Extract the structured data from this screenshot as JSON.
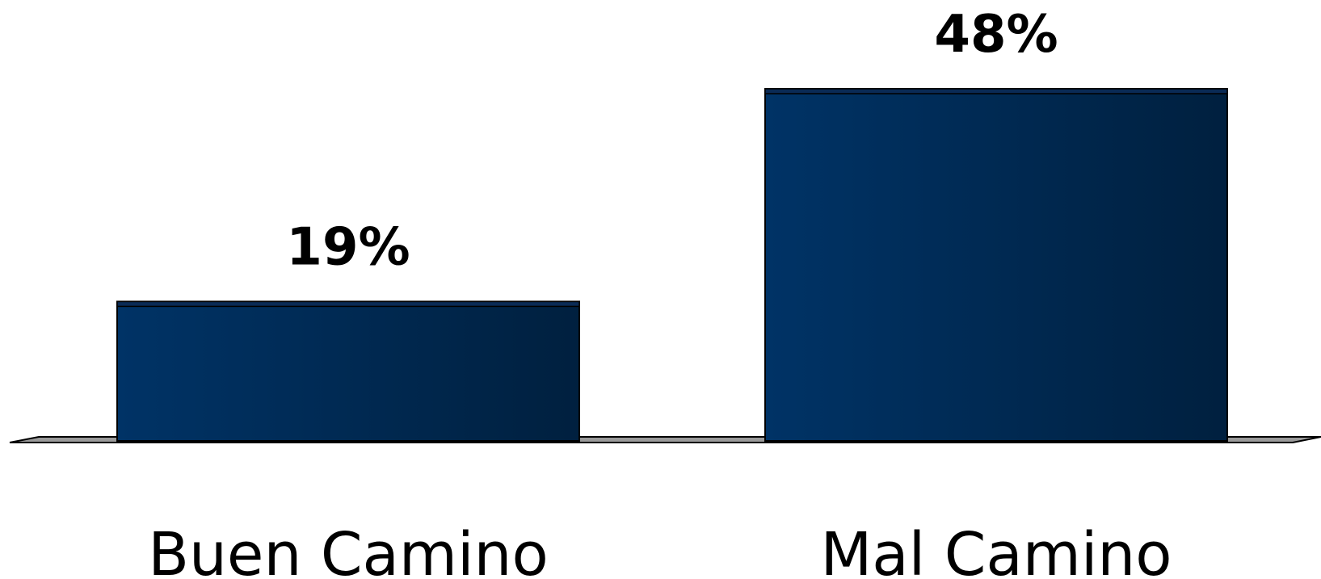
{
  "chart_data": {
    "type": "bar",
    "categories": [
      "Buen Camino",
      "Mal Camino"
    ],
    "values": [
      19,
      48
    ],
    "data_labels": [
      "19%",
      "48%"
    ],
    "ylim": [
      0,
      48
    ],
    "grid": false,
    "legend": "none",
    "colors": {
      "bar_light": "#003366",
      "bar_dark": "#00203f",
      "floor": "#9a9a9a",
      "floor_edge": "#000000"
    }
  }
}
